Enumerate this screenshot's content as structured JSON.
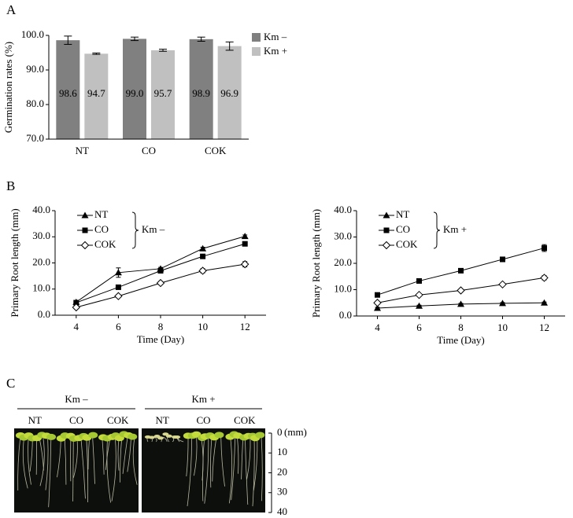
{
  "chart_data": [
    {
      "type": "bar",
      "panel": "A",
      "ylabel": "Germination rates (%)",
      "categories": [
        "NT",
        "CO",
        "COK"
      ],
      "series": [
        {
          "name": "Km –",
          "color": "#808080",
          "values": [
            98.6,
            99.0,
            98.9
          ],
          "value_labels": [
            "98.6",
            "99.0",
            "98.9"
          ],
          "errors": [
            1.2,
            0.5,
            0.6
          ]
        },
        {
          "name": "Km +",
          "color": "#c0c0c0",
          "values": [
            94.7,
            95.7,
            96.9
          ],
          "value_labels": [
            "94.7",
            "95.7",
            "96.9"
          ],
          "errors": [
            0.2,
            0.3,
            1.2
          ]
        }
      ],
      "ylim": [
        70,
        100
      ],
      "yticks": [
        {
          "value": 70,
          "label": "70.0"
        },
        {
          "value": 80,
          "label": "80.0"
        },
        {
          "value": 90,
          "label": "90.0"
        },
        {
          "value": 100,
          "label": "100.0"
        }
      ],
      "legend": "right"
    },
    {
      "type": "line",
      "panel": "B",
      "xlabel": "Time (Day)",
      "ylabel": "Primary Root length (mm)",
      "legend_group": "Km –",
      "x": [
        4,
        6,
        8,
        10,
        12
      ],
      "series": [
        {
          "name": "NT",
          "marker": "triangle",
          "color": "#000000",
          "values": [
            5.0,
            16.3,
            17.8,
            25.5,
            30.2
          ],
          "errors": [
            0.5,
            1.8,
            0.5,
            0.5,
            0.5
          ]
        },
        {
          "name": "CO",
          "marker": "square",
          "color": "#000000",
          "values": [
            4.8,
            10.7,
            17.0,
            22.5,
            27.3
          ],
          "errors": [
            0.5,
            0.5,
            0.8,
            0.6,
            0.6
          ]
        },
        {
          "name": "COK",
          "marker": "open-diamond",
          "color": "#000000",
          "values": [
            3.0,
            7.3,
            12.3,
            17.0,
            19.5
          ],
          "errors": [
            0.5,
            0.5,
            0.6,
            0.8,
            1.0
          ]
        }
      ],
      "xlim": [
        3,
        13
      ],
      "xticks": [
        4,
        6,
        8,
        10,
        12
      ],
      "ylim": [
        0,
        40
      ],
      "yticks": [
        {
          "value": 0,
          "label": "0.0"
        },
        {
          "value": 10,
          "label": "10.0"
        },
        {
          "value": 20,
          "label": "20.0"
        },
        {
          "value": 30,
          "label": "30.0"
        },
        {
          "value": 40,
          "label": "40.0"
        }
      ]
    },
    {
      "type": "line",
      "xlabel": "Time (Day)",
      "ylabel": "Primary Root length (mm)",
      "legend_group": "Km +",
      "x": [
        4,
        6,
        8,
        10,
        12
      ],
      "series": [
        {
          "name": "NT",
          "marker": "triangle",
          "color": "#000000",
          "values": [
            3.0,
            3.8,
            4.5,
            4.8,
            5.0
          ],
          "errors": [
            0.3,
            0.3,
            0.3,
            0.3,
            0.3
          ]
        },
        {
          "name": "CO",
          "marker": "square",
          "color": "#000000",
          "values": [
            8.0,
            13.3,
            17.2,
            21.5,
            25.8
          ],
          "errors": [
            0.5,
            0.5,
            0.5,
            0.9,
            1.3
          ]
        },
        {
          "name": "COK",
          "marker": "open-diamond",
          "color": "#000000",
          "values": [
            5.0,
            8.0,
            9.7,
            12.0,
            14.5
          ],
          "errors": [
            0.3,
            0.3,
            0.3,
            0.5,
            0.8
          ]
        }
      ],
      "xlim": [
        3,
        13
      ],
      "xticks": [
        4,
        6,
        8,
        10,
        12
      ],
      "ylim": [
        0,
        40
      ],
      "yticks": [
        {
          "value": 0,
          "label": "0.0"
        },
        {
          "value": 10,
          "label": "10.0"
        },
        {
          "value": 20,
          "label": "20.0"
        },
        {
          "value": 30,
          "label": "30.0"
        },
        {
          "value": 40,
          "label": "40.0"
        }
      ]
    }
  ],
  "photo_panel": {
    "panel": "C",
    "groups": [
      {
        "name": "Km –",
        "lanes": [
          "NT",
          "CO",
          "COK"
        ]
      },
      {
        "name": "Km +",
        "lanes": [
          "NT",
          "CO",
          "COK"
        ]
      }
    ],
    "scale_unit": "(mm)",
    "scale_ticks": [
      0,
      10,
      20,
      30,
      40
    ]
  }
}
